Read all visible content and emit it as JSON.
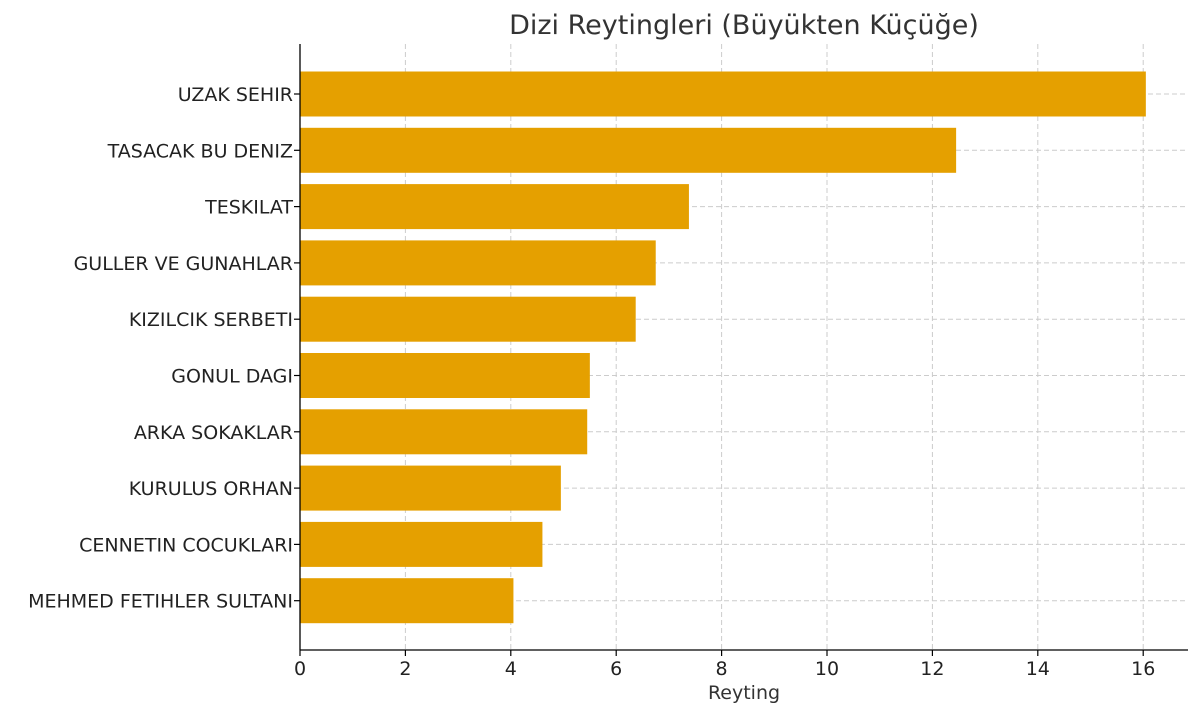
{
  "chart_data": {
    "type": "bar",
    "orientation": "horizontal",
    "title": "Dizi Reytingleri (Büyükten Küçüğe)",
    "xlabel": "Reyting",
    "ylabel": "",
    "categories": [
      "UZAK SEHIR",
      "TASACAK BU DENIZ",
      "TESKILAT",
      "GULLER VE GUNAHLAR",
      "KIZILCIK SERBETI",
      "GONUL DAGI",
      "ARKA SOKAKLAR",
      "KURULUS ORHAN",
      "CENNETIN COCUKLARI",
      "MEHMED FETIHLER SULTANI"
    ],
    "values": [
      16.05,
      12.45,
      7.38,
      6.75,
      6.37,
      5.5,
      5.45,
      4.95,
      4.6,
      4.05
    ],
    "xlim": [
      0,
      16.85
    ],
    "xticks": [
      0,
      2,
      4,
      6,
      8,
      10,
      12,
      14,
      16
    ],
    "grid": true,
    "bar_color": "#E5A000",
    "grid_color": "#cccccc"
  }
}
